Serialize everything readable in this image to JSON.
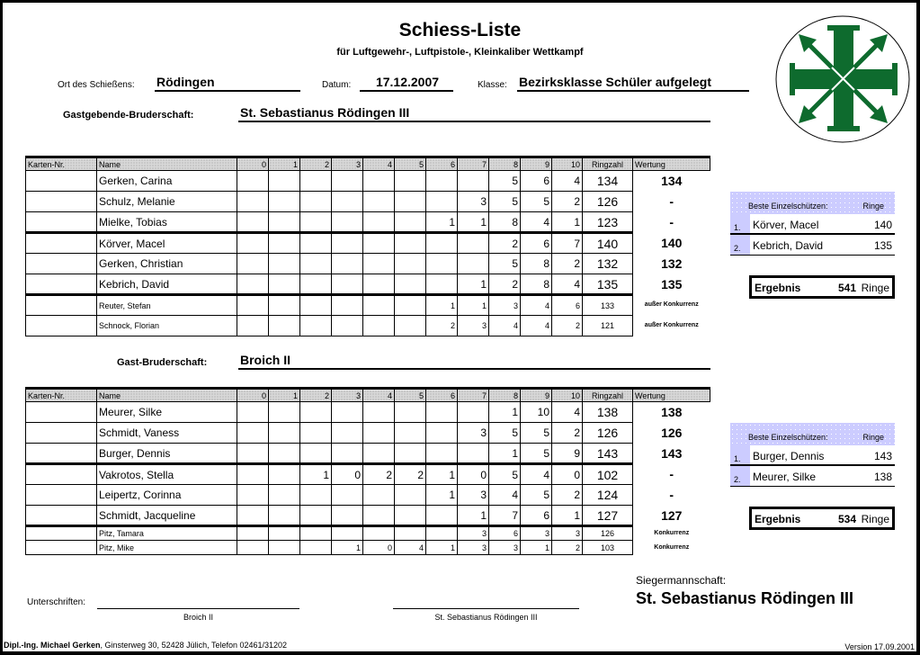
{
  "header": {
    "title": "Schiess-Liste",
    "subtitle": "für Luftgewehr-, Luftpistole-, Kleinkaliber Wettkampf",
    "ort_label": "Ort des Schießens:",
    "ort": "Rödingen",
    "datum_label": "Datum:",
    "datum": "17.12.2007",
    "klasse_label": "Klasse:",
    "klasse": "Bezirksklasse Schüler aufgelegt"
  },
  "logo": {
    "color": "#0e6b2e"
  },
  "columns": [
    "Karten-Nr.",
    "Name",
    "0",
    "1",
    "2",
    "3",
    "4",
    "5",
    "6",
    "7",
    "8",
    "9",
    "10",
    "Ringzahl",
    "Wertung"
  ],
  "team1": {
    "label": "Gastgebende-Bruderschaft:",
    "name": "St. Sebastianus Rödingen III",
    "rows": [
      {
        "name": "Gerken, Carina",
        "s": [
          "",
          "",
          "",
          "",
          "",
          "",
          "",
          "",
          "5",
          "6",
          "4"
        ],
        "ring": "134",
        "wertung": "134"
      },
      {
        "name": "Schulz, Melanie",
        "s": [
          "",
          "",
          "",
          "",
          "",
          "",
          "",
          "3",
          "5",
          "5",
          "2"
        ],
        "ring": "126",
        "wertung": "-"
      },
      {
        "name": "Mielke, Tobias",
        "s": [
          "",
          "",
          "",
          "",
          "",
          "",
          "1",
          "1",
          "8",
          "4",
          "1"
        ],
        "ring": "123",
        "wertung": "-"
      },
      {
        "name": "Körver, Macel",
        "s": [
          "",
          "",
          "",
          "",
          "",
          "",
          "",
          "",
          "2",
          "6",
          "7"
        ],
        "ring": "140",
        "wertung": "140"
      },
      {
        "name": "Gerken, Christian",
        "s": [
          "",
          "",
          "",
          "",
          "",
          "",
          "",
          "",
          "5",
          "8",
          "2"
        ],
        "ring": "132",
        "wertung": "132"
      },
      {
        "name": "Kebrich, David",
        "s": [
          "",
          "",
          "",
          "",
          "",
          "",
          "",
          "1",
          "2",
          "8",
          "4"
        ],
        "ring": "135",
        "wertung": "135"
      },
      {
        "name": "Reuter, Stefan",
        "s": [
          "",
          "",
          "",
          "",
          "",
          "",
          "1",
          "1",
          "3",
          "4",
          "6"
        ],
        "ring": "133",
        "wertung": "außer Konkurrenz",
        "small": true
      },
      {
        "name": "Schnock, Florian",
        "s": [
          "",
          "",
          "",
          "",
          "",
          "",
          "2",
          "3",
          "4",
          "4",
          "2"
        ],
        "ring": "121",
        "wertung": "außer Konkurrenz",
        "small": true
      }
    ],
    "best": {
      "header": "Beste Einzelschützen:",
      "ringe": "Ringe",
      "items": [
        {
          "rank": "1.",
          "name": "Körver, Macel",
          "ringe": "140"
        },
        {
          "rank": "2.",
          "name": "Kebrich, David",
          "ringe": "135"
        }
      ]
    },
    "ergebnis": {
      "label": "Ergebnis",
      "value": "541",
      "unit": "Ringe"
    }
  },
  "team2": {
    "label": "Gast-Bruderschaft:",
    "name": "Broich II",
    "rows": [
      {
        "name": "Meurer, Silke",
        "s": [
          "",
          "",
          "",
          "",
          "",
          "",
          "",
          "",
          "1",
          "10",
          "4"
        ],
        "ring": "138",
        "wertung": "138"
      },
      {
        "name": "Schmidt, Vaness",
        "s": [
          "",
          "",
          "",
          "",
          "",
          "",
          "",
          "3",
          "5",
          "5",
          "2"
        ],
        "ring": "126",
        "wertung": "126"
      },
      {
        "name": "Burger, Dennis",
        "s": [
          "",
          "",
          "",
          "",
          "",
          "",
          "",
          "",
          "1",
          "5",
          "9"
        ],
        "ring": "143",
        "wertung": "143"
      },
      {
        "name": "Vakrotos, Stella",
        "s": [
          "",
          "",
          "1",
          "0",
          "2",
          "2",
          "1",
          "0",
          "5",
          "4",
          "0"
        ],
        "ring": "102",
        "wertung": "-"
      },
      {
        "name": "Leipertz, Corinna",
        "s": [
          "",
          "",
          "",
          "",
          "",
          "",
          "1",
          "3",
          "4",
          "5",
          "2"
        ],
        "ring": "124",
        "wertung": "-"
      },
      {
        "name": "Schmidt, Jacqueline",
        "s": [
          "",
          "",
          "",
          "",
          "",
          "",
          "",
          "1",
          "7",
          "6",
          "1"
        ],
        "ring": "127",
        "wertung": "127"
      },
      {
        "name": "Pitz, Tamara",
        "s": [
          "",
          "",
          "",
          "",
          "",
          "",
          "",
          "3",
          "6",
          "3",
          "3"
        ],
        "ring": "126",
        "wertung": "Konkurrenz",
        "small": true
      },
      {
        "name": "Pitz, Mike",
        "s": [
          "",
          "",
          "",
          "1",
          "0",
          "4",
          "1",
          "3",
          "3",
          "1",
          "2"
        ],
        "ring": "103",
        "wertung": "Konkurrenz",
        "small": true
      }
    ],
    "best": {
      "header": "Beste Einzelschützen:",
      "ringe": "Ringe",
      "items": [
        {
          "rank": "1.",
          "name": "Burger, Dennis",
          "ringe": "143"
        },
        {
          "rank": "2.",
          "name": "Meurer, Silke",
          "ringe": "138"
        }
      ]
    },
    "ergebnis": {
      "label": "Ergebnis",
      "value": "534",
      "unit": "Ringe"
    }
  },
  "footer": {
    "unterschriften": "Unterschriften:",
    "sig1": "Broich II",
    "sig2": "St. Sebastianus Rödingen III",
    "sieger_label": "Siegermannschaft:",
    "sieger": "St. Sebastianus Rödingen III",
    "author": "Dipl.-Ing. Michael Gerken",
    "address": ", Ginsterweg 30, 52428 Jülich, Telefon 02461/31202",
    "version": "Version 17.09.2001"
  }
}
